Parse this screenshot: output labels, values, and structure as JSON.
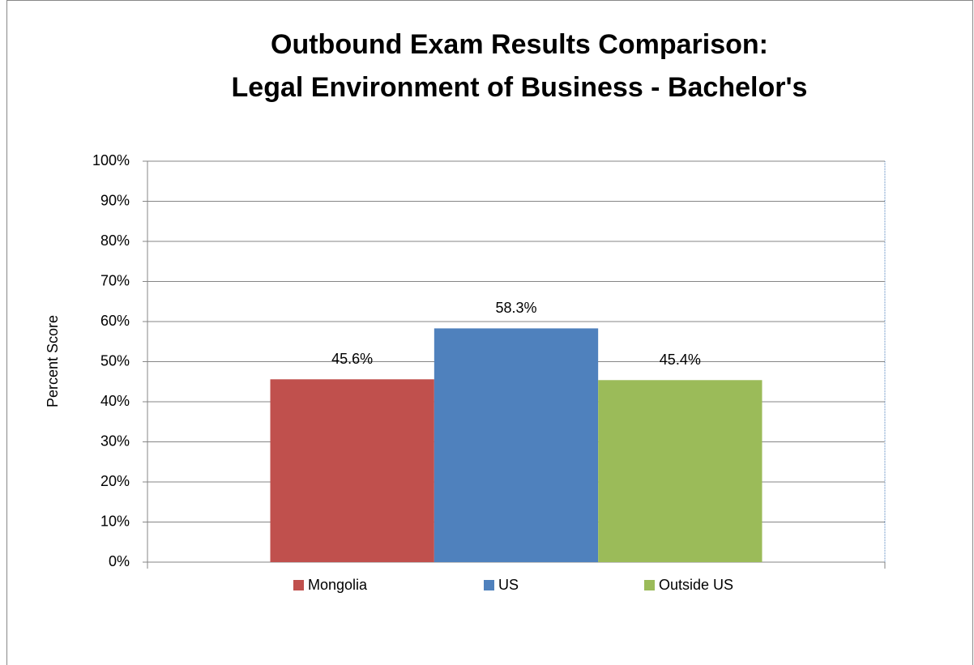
{
  "chart_data": {
    "type": "bar",
    "title": [
      "Outbound Exam Results Comparison:",
      "Legal Environment of Business - Bachelor's"
    ],
    "y_label": "Percent Score",
    "categories": [
      null
    ],
    "series": [
      {
        "name": "Mongolia",
        "color": "#c0504d",
        "values": [
          45.6
        ],
        "value_labels": [
          "45.6%"
        ]
      },
      {
        "name": "US",
        "color": "#4f81bd",
        "values": [
          58.3
        ],
        "value_labels": [
          "58.3%"
        ]
      },
      {
        "name": "Outside US",
        "color": "#9bbb59",
        "values": [
          45.4
        ],
        "value_labels": [
          "45.4%"
        ]
      }
    ],
    "ylim": [
      0,
      100
    ],
    "yticks": [
      {
        "value": 0,
        "label": "0%"
      },
      {
        "value": 10,
        "label": "10%"
      },
      {
        "value": 20,
        "label": "20%"
      },
      {
        "value": 30,
        "label": "30%"
      },
      {
        "value": 40,
        "label": "40%"
      },
      {
        "value": 50,
        "label": "50%"
      },
      {
        "value": 60,
        "label": "60%"
      },
      {
        "value": 70,
        "label": "70%"
      },
      {
        "value": 80,
        "label": "80%"
      },
      {
        "value": 90,
        "label": "90%"
      },
      {
        "value": 100,
        "label": "100%"
      }
    ],
    "grid": true,
    "legend": "bottom"
  }
}
